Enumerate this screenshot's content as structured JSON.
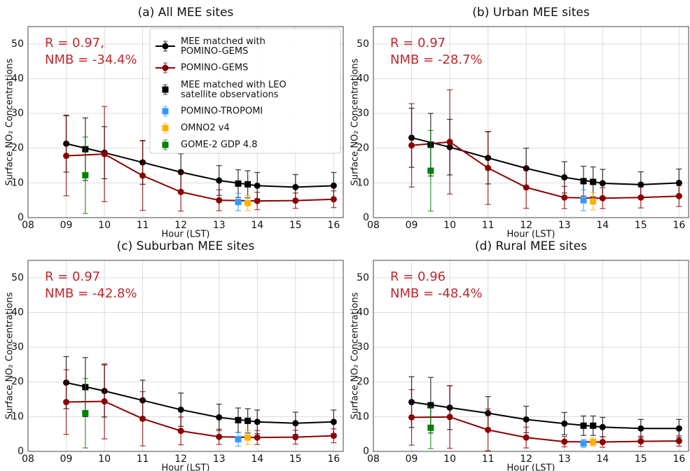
{
  "chart_data": [
    {
      "type": "errorbar",
      "title": "(a) All MEE sites",
      "xlabel": "Hour (LST)",
      "ylabel": "Surface NO₂ Concentrations",
      "annotations": [
        "R = 0.97,",
        "NMB = -34.4%"
      ],
      "legend": "upper right",
      "grid": true,
      "xlim": [
        8,
        16.25
      ],
      "ylim": [
        0,
        55
      ],
      "xticks": [
        {
          "value": 8,
          "label": "08"
        },
        {
          "value": 9,
          "label": "09"
        },
        10,
        11,
        12,
        13,
        14,
        15,
        16
      ],
      "yticks": [
        0,
        10,
        20,
        30,
        40,
        50
      ],
      "series": [
        {
          "name": "MEE matched with POMINO-GEMS",
          "color": "#000000",
          "marker": "circle",
          "line": true,
          "x": [
            9,
            10,
            11,
            12,
            13,
            14,
            15,
            16
          ],
          "values": [
            21.3,
            18.7,
            15.9,
            13.1,
            10.7,
            9.2,
            8.8,
            9.2
          ],
          "errors": [
            8.2,
            7.5,
            6.3,
            5.3,
            4.3,
            3.8,
            3.6,
            3.8
          ]
        },
        {
          "name": "POMINO-GEMS",
          "color": "#8b0000",
          "marker": "circle",
          "line": true,
          "x": [
            9,
            10,
            11,
            12,
            13,
            14,
            15,
            16
          ],
          "values": [
            17.8,
            18.3,
            12.1,
            7.4,
            5.0,
            4.8,
            4.9,
            5.3
          ],
          "errors": [
            11.5,
            13.7,
            10.0,
            5.5,
            3.0,
            2.5,
            2.2,
            2.4
          ]
        },
        {
          "name": "MEE matched with LEO satellite observations",
          "color": "#000000",
          "marker": "square",
          "line": false,
          "x": [
            9.5,
            13.5,
            13.75
          ],
          "values": [
            19.7,
            9.8,
            9.6
          ],
          "errors": [
            9.0,
            4.0,
            3.9
          ]
        },
        {
          "name": "POMINO-TROPOMI",
          "color": "#3399ff",
          "marker": "square",
          "line": false,
          "x": [
            13.5
          ],
          "values": [
            4.5
          ],
          "errors": [
            2.5
          ]
        },
        {
          "name": "OMNO2 v4",
          "color": "#ffb000",
          "marker": "square",
          "line": false,
          "x": [
            13.75
          ],
          "values": [
            4.2
          ],
          "errors": [
            2.2
          ]
        },
        {
          "name": "GOME-2 GDP 4.8",
          "color": "#008000",
          "marker": "square",
          "line": false,
          "x": [
            9.5
          ],
          "values": [
            12.2
          ],
          "errors": [
            11.0
          ]
        }
      ]
    },
    {
      "type": "errorbar",
      "title": "(b) Urban MEE sites",
      "xlabel": "Hour (LST)",
      "ylabel": "Surface NO₂ Concentrations",
      "annotations": [
        "R = 0.97",
        "NMB = -28.7%"
      ],
      "grid": true,
      "xlim": [
        8,
        16.25
      ],
      "ylim": [
        0,
        55
      ],
      "xticks": [
        {
          "value": 8,
          "label": "08"
        },
        {
          "value": 9,
          "label": "09"
        },
        10,
        11,
        12,
        13,
        14,
        15,
        16
      ],
      "yticks": [
        0,
        10,
        20,
        30,
        40,
        50
      ],
      "series": [
        {
          "color": "#000000",
          "marker": "circle",
          "line": true,
          "x": [
            9,
            10,
            11,
            12,
            13,
            14,
            15,
            16
          ],
          "values": [
            23.0,
            20.3,
            17.2,
            14.2,
            11.6,
            9.9,
            9.5,
            10.0
          ],
          "errors": [
            8.5,
            8.0,
            7.5,
            5.8,
            4.5,
            4.0,
            3.7,
            4.0
          ]
        },
        {
          "color": "#8b0000",
          "marker": "circle",
          "line": true,
          "x": [
            9,
            10,
            11,
            12,
            13,
            14,
            15,
            16
          ],
          "values": [
            20.8,
            21.8,
            14.3,
            8.7,
            5.8,
            5.6,
            5.8,
            6.2
          ],
          "errors": [
            12.0,
            15.0,
            10.5,
            6.0,
            3.2,
            3.0,
            3.0,
            3.0
          ]
        },
        {
          "color": "#000000",
          "marker": "square",
          "line": false,
          "x": [
            9.5,
            13.5,
            13.75
          ],
          "values": [
            21.0,
            10.5,
            10.3
          ],
          "errors": [
            9.0,
            4.3,
            4.3
          ]
        },
        {
          "color": "#3399ff",
          "marker": "square",
          "line": false,
          "x": [
            13.5
          ],
          "values": [
            5.0
          ],
          "errors": [
            3.0
          ]
        },
        {
          "color": "#ffb000",
          "marker": "square",
          "line": false,
          "x": [
            13.75
          ],
          "values": [
            4.7
          ],
          "errors": [
            2.5
          ]
        },
        {
          "color": "#008000",
          "marker": "square",
          "line": false,
          "x": [
            9.5
          ],
          "values": [
            13.5
          ],
          "errors": [
            11.6
          ]
        }
      ]
    },
    {
      "type": "errorbar",
      "title": "(c) Suburban MEE sites",
      "xlabel": "Hour (LST)",
      "ylabel": "Surface NO₂ Concentrations",
      "annotations": [
        "R = 0.97",
        "NMB = -42.8%"
      ],
      "grid": true,
      "xlim": [
        8,
        16.25
      ],
      "ylim": [
        0,
        55
      ],
      "xticks": [
        {
          "value": 8,
          "label": "08"
        },
        {
          "value": 9,
          "label": "09"
        },
        10,
        11,
        12,
        13,
        14,
        15,
        16
      ],
      "yticks": [
        0,
        10,
        20,
        30,
        40,
        50
      ],
      "series": [
        {
          "color": "#000000",
          "marker": "circle",
          "line": true,
          "x": [
            9,
            10,
            11,
            12,
            13,
            14,
            15,
            16
          ],
          "values": [
            19.8,
            17.4,
            14.7,
            12.0,
            9.8,
            8.5,
            8.1,
            8.5
          ],
          "errors": [
            7.5,
            7.5,
            5.8,
            4.8,
            3.8,
            3.4,
            3.2,
            3.4
          ]
        },
        {
          "color": "#8b0000",
          "marker": "circle",
          "line": true,
          "x": [
            9,
            10,
            11,
            12,
            13,
            14,
            15,
            16
          ],
          "values": [
            14.2,
            14.4,
            9.4,
            5.9,
            4.2,
            4.0,
            4.1,
            4.5
          ],
          "errors": [
            9.3,
            10.8,
            7.8,
            4.0,
            2.2,
            2.0,
            2.0,
            2.0
          ]
        },
        {
          "color": "#000000",
          "marker": "square",
          "line": false,
          "x": [
            9.5,
            13.5,
            13.75
          ],
          "values": [
            18.5,
            9.0,
            8.8
          ],
          "errors": [
            8.5,
            3.5,
            3.5
          ]
        },
        {
          "color": "#3399ff",
          "marker": "square",
          "line": false,
          "x": [
            13.5
          ],
          "values": [
            3.5
          ],
          "errors": [
            2.0
          ]
        },
        {
          "color": "#ffb000",
          "marker": "square",
          "line": false,
          "x": [
            13.75
          ],
          "values": [
            4.0
          ],
          "errors": [
            2.0
          ]
        },
        {
          "color": "#008000",
          "marker": "square",
          "line": false,
          "x": [
            9.5
          ],
          "values": [
            11.0
          ],
          "errors": [
            10.0
          ]
        }
      ]
    },
    {
      "type": "errorbar",
      "title": "(d) Rural MEE sites",
      "xlabel": "Hour (LST)",
      "ylabel": "Surface NO₂ Concentrations",
      "annotations": [
        "R = 0.96",
        "NMB = -48.4%"
      ],
      "grid": true,
      "xlim": [
        8,
        16.25
      ],
      "ylim": [
        0,
        55
      ],
      "xticks": [
        {
          "value": 8,
          "label": "08"
        },
        {
          "value": 9,
          "label": "09"
        },
        10,
        11,
        12,
        13,
        14,
        15,
        16
      ],
      "yticks": [
        0,
        10,
        20,
        30,
        40,
        50
      ],
      "series": [
        {
          "color": "#000000",
          "marker": "circle",
          "line": true,
          "x": [
            9,
            10,
            11,
            12,
            13,
            14,
            15,
            16
          ],
          "values": [
            14.2,
            12.6,
            11.0,
            9.2,
            8.0,
            7.0,
            6.6,
            6.6
          ],
          "errors": [
            7.3,
            6.3,
            4.8,
            3.8,
            3.2,
            2.8,
            2.6,
            2.6
          ]
        },
        {
          "color": "#8b0000",
          "marker": "circle",
          "line": true,
          "x": [
            9,
            10,
            11,
            12,
            13,
            14,
            15,
            16
          ],
          "values": [
            9.8,
            9.9,
            6.2,
            4.0,
            2.8,
            2.7,
            2.9,
            3.0
          ],
          "errors": [
            8.0,
            9.0,
            6.0,
            3.0,
            1.5,
            1.5,
            1.5,
            1.5
          ]
        },
        {
          "color": "#000000",
          "marker": "square",
          "line": false,
          "x": [
            9.5,
            13.5,
            13.75
          ],
          "values": [
            13.3,
            7.4,
            7.4
          ],
          "errors": [
            8.0,
            2.8,
            2.8
          ]
        },
        {
          "color": "#3399ff",
          "marker": "square",
          "line": false,
          "x": [
            13.5
          ],
          "values": [
            2.3
          ],
          "errors": [
            1.2
          ]
        },
        {
          "color": "#ffb000",
          "marker": "square",
          "line": false,
          "x": [
            13.75
          ],
          "values": [
            2.7
          ],
          "errors": [
            1.2
          ]
        },
        {
          "color": "#008000",
          "marker": "square",
          "line": false,
          "x": [
            9.5
          ],
          "values": [
            6.8
          ],
          "errors": [
            6.0
          ]
        }
      ]
    }
  ]
}
